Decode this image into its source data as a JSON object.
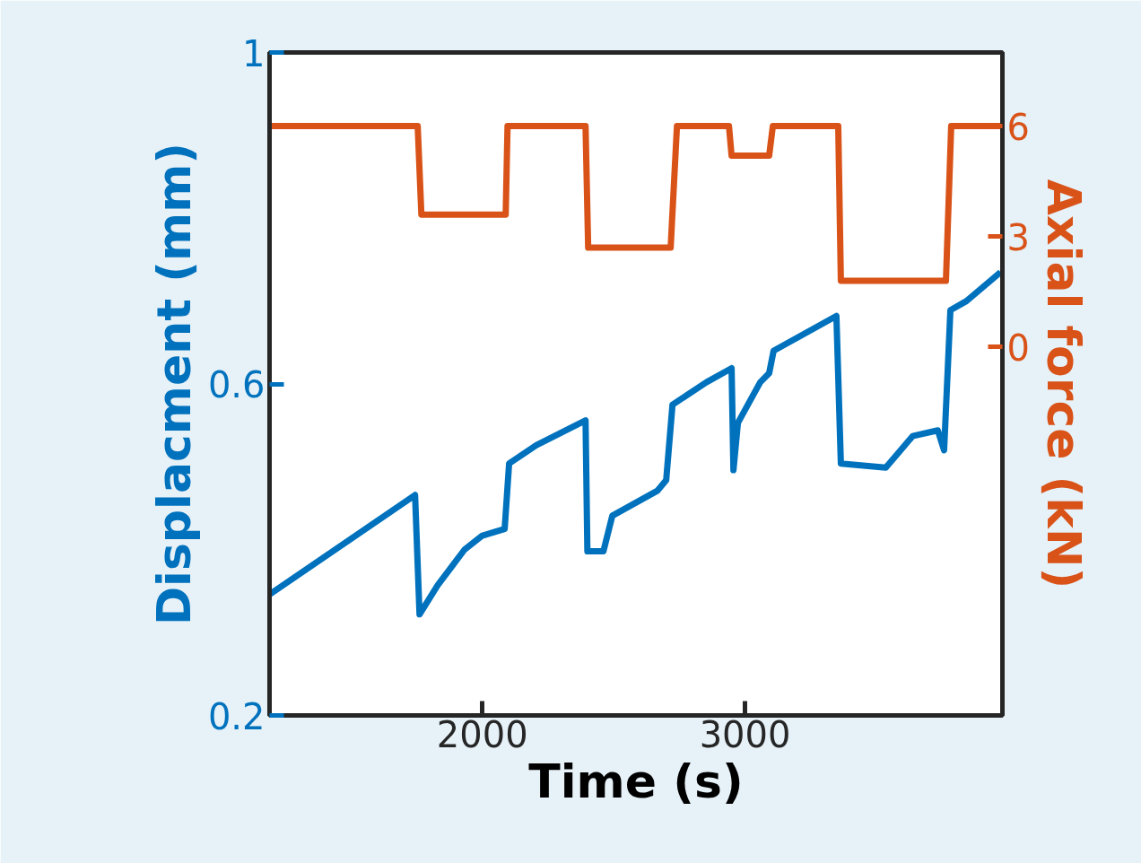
{
  "chart_data": {
    "type": "line",
    "xlabel": "Time (s)",
    "ylabel": "Displacment (mm)",
    "y2label": "Axial force (kN)",
    "xlim": [
      1190,
      3980
    ],
    "xticks": [
      2000,
      3000
    ],
    "ylim": [
      0.2,
      1
    ],
    "yticks": [
      0.2,
      0.6,
      1
    ],
    "y2lim": [
      -10,
      8
    ],
    "y2ticks": [
      0,
      3,
      6
    ],
    "grid": false,
    "line_style": "solid",
    "series": [
      {
        "color": "#0072bd",
        "x": [
          1190,
          1744,
          1761,
          1830,
          1932,
          2000,
          2085,
          2102,
          2205,
          2393,
          2400,
          2461,
          2495,
          2666,
          2700,
          2724,
          2853,
          2949,
          2956,
          2973,
          3058,
          3092,
          3109,
          3348,
          3365,
          3536,
          3638,
          3734,
          3758,
          3782,
          3843,
          3973
        ],
        "values": [
          0.346,
          0.466,
          0.322,
          0.357,
          0.4,
          0.417,
          0.425,
          0.504,
          0.526,
          0.556,
          0.398,
          0.398,
          0.441,
          0.471,
          0.484,
          0.575,
          0.602,
          0.619,
          0.496,
          0.553,
          0.602,
          0.613,
          0.64,
          0.682,
          0.504,
          0.499,
          0.537,
          0.544,
          0.52,
          0.689,
          0.7,
          0.735
        ]
      },
      {
        "color": "#d95319",
        "axis": "y2",
        "x": [
          1190,
          1754,
          1768,
          2089,
          2096,
          2393,
          2403,
          2717,
          2741,
          2939,
          2949,
          3092,
          3106,
          3355,
          3365,
          3765,
          3785,
          3973
        ],
        "values": [
          6,
          6,
          3.6,
          3.6,
          6,
          6,
          2.7,
          2.7,
          6,
          6,
          5.2,
          5.2,
          6,
          6,
          1.8,
          1.8,
          6,
          6
        ]
      }
    ]
  }
}
